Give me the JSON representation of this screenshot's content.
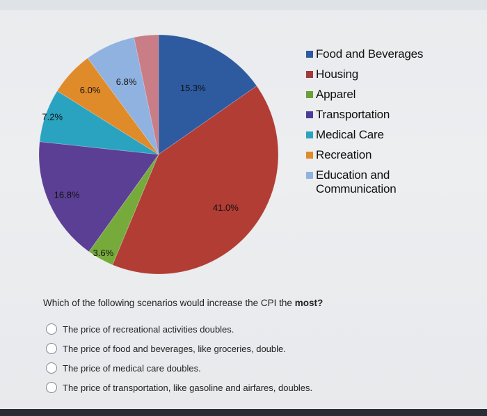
{
  "chart_data": {
    "type": "pie",
    "title": "",
    "slices": [
      {
        "name": "Food and Beverages",
        "value": 15.3,
        "label": "15.3%",
        "color": "#2e5aa0"
      },
      {
        "name": "Housing",
        "value": 41.0,
        "label": "41.0%",
        "color": "#b13d34"
      },
      {
        "name": "Apparel",
        "value": 3.6,
        "label": "3.6%",
        "color": "#76ab3b"
      },
      {
        "name": "Transportation",
        "value": 16.8,
        "label": "16.8%",
        "color": "#5b3f95"
      },
      {
        "name": "Medical Care",
        "value": 7.2,
        "label": "7.2%",
        "color": "#2aa3c0"
      },
      {
        "name": "Recreation",
        "value": 6.0,
        "label": "6.0%",
        "color": "#e08b2a"
      },
      {
        "name": "Education and Communication",
        "value": 6.8,
        "label": "6.8%",
        "color": "#8fb2e0"
      },
      {
        "name": "",
        "value": 3.3,
        "label": "",
        "color": "#c97d86"
      }
    ],
    "legend": [
      {
        "label": "Food and Beverages",
        "color": "#2e5aa0"
      },
      {
        "label": "Housing",
        "color": "#a33a3a"
      },
      {
        "label": "Apparel",
        "color": "#6aa03a"
      },
      {
        "label": "Transportation",
        "color": "#4a3d9a"
      },
      {
        "label": "Medical Care",
        "color": "#2aa3c0"
      },
      {
        "label": "Recreation",
        "color": "#e08b2a"
      },
      {
        "label": "Education and Communication",
        "color": "#8fb2e0"
      }
    ],
    "legend_position": "right"
  },
  "question": {
    "prefix": "Which of the following scenarios would increase the CPI the ",
    "emphasis": "most?"
  },
  "options": [
    "The price of recreational activities doubles.",
    "The price of food and beverages, like groceries, double.",
    "The price of medical care doubles.",
    "The price of transportation, like gasoline and airfares, doubles."
  ]
}
